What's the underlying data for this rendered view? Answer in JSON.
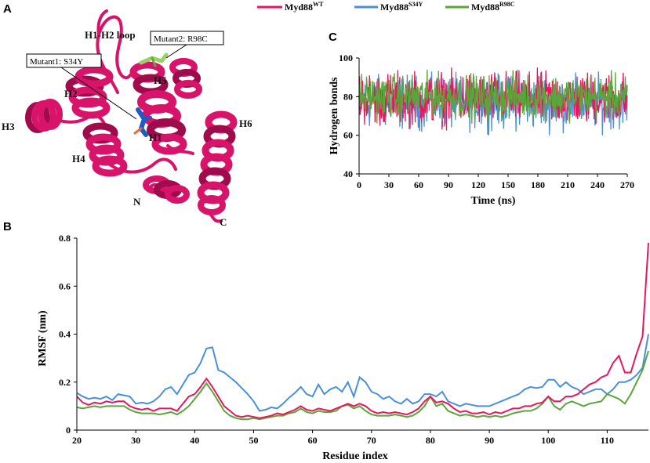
{
  "colors": {
    "wt": "#e8175d",
    "s34y": "#4a90d9",
    "r98c": "#5aa63a",
    "protein": "#d8136a",
    "protein_dark": "#9e0c4c"
  },
  "panels": {
    "a": "A",
    "b": "B",
    "c": "C"
  },
  "legend": [
    {
      "base": "Myd88",
      "sup": "WT",
      "color": "#e8175d"
    },
    {
      "base": "Myd88",
      "sup": "S34Y",
      "color": "#4a90d9"
    },
    {
      "base": "Myd88",
      "sup": "R98C",
      "color": "#5aa63a"
    }
  ],
  "structure": {
    "labels": {
      "h1h2": "H1-H2 loop",
      "h1": "H1",
      "h2": "H2",
      "h3": "H3",
      "h4": "H4",
      "h5": "H5",
      "h6": "H6",
      "n": "N",
      "c": "C"
    },
    "mutant1": "Mutant1: S34Y",
    "mutant2": "Mutant2: R98C"
  },
  "chart_data": [
    {
      "id": "hbonds",
      "type": "line",
      "xlabel": "Time (ns)",
      "ylabel": "Hydrogen bonds",
      "xlim": [
        0,
        270
      ],
      "ylim": [
        40,
        100
      ],
      "xticks": [
        0,
        30,
        60,
        90,
        120,
        150,
        180,
        210,
        240,
        270
      ],
      "yticks": [
        40,
        60,
        80,
        100
      ],
      "series": [
        {
          "name": "Myd88 WT",
          "mean": 79,
          "spread": 6,
          "min": 59,
          "max": 95
        },
        {
          "name": "Myd88 S34Y",
          "mean": 77,
          "spread": 6,
          "min": 60,
          "max": 93
        },
        {
          "name": "Myd88 R98C",
          "mean": 80,
          "spread": 5,
          "min": 66,
          "max": 96
        }
      ]
    },
    {
      "id": "rmsf",
      "type": "line",
      "xlabel": "Residue index",
      "ylabel": "RMSF (nm)",
      "xlim": [
        20,
        117
      ],
      "ylim": [
        0,
        0.8
      ],
      "xticks": [
        20,
        30,
        40,
        50,
        60,
        70,
        80,
        90,
        100,
        110
      ],
      "yticks": [
        0,
        0.2,
        0.4,
        0.6,
        0.8
      ],
      "x": [
        20,
        21,
        22,
        23,
        24,
        25,
        26,
        27,
        28,
        29,
        30,
        31,
        32,
        33,
        34,
        35,
        36,
        37,
        38,
        39,
        40,
        41,
        42,
        43,
        44,
        45,
        46,
        47,
        48,
        49,
        50,
        51,
        52,
        53,
        54,
        55,
        56,
        57,
        58,
        59,
        60,
        61,
        62,
        63,
        64,
        65,
        66,
        67,
        68,
        69,
        70,
        71,
        72,
        73,
        74,
        75,
        76,
        77,
        78,
        79,
        80,
        81,
        82,
        83,
        84,
        85,
        86,
        87,
        88,
        89,
        90,
        91,
        92,
        93,
        94,
        95,
        96,
        97,
        98,
        99,
        100,
        101,
        102,
        103,
        104,
        105,
        106,
        107,
        108,
        109,
        110,
        111,
        112,
        113,
        114,
        115,
        116,
        117
      ],
      "series": [
        {
          "name": "Myd88 WT",
          "values": [
            0.14,
            0.115,
            0.105,
            0.115,
            0.11,
            0.12,
            0.115,
            0.12,
            0.12,
            0.1,
            0.09,
            0.085,
            0.09,
            0.08,
            0.09,
            0.09,
            0.09,
            0.08,
            0.11,
            0.14,
            0.15,
            0.18,
            0.215,
            0.18,
            0.14,
            0.1,
            0.08,
            0.06,
            0.055,
            0.06,
            0.055,
            0.05,
            0.055,
            0.06,
            0.07,
            0.065,
            0.075,
            0.085,
            0.1,
            0.085,
            0.08,
            0.09,
            0.085,
            0.08,
            0.09,
            0.1,
            0.11,
            0.1,
            0.11,
            0.1,
            0.08,
            0.07,
            0.075,
            0.07,
            0.075,
            0.07,
            0.065,
            0.075,
            0.09,
            0.12,
            0.14,
            0.115,
            0.12,
            0.11,
            0.09,
            0.075,
            0.08,
            0.07,
            0.07,
            0.075,
            0.065,
            0.075,
            0.07,
            0.08,
            0.09,
            0.09,
            0.1,
            0.1,
            0.11,
            0.115,
            0.14,
            0.12,
            0.12,
            0.14,
            0.14,
            0.15,
            0.17,
            0.19,
            0.2,
            0.22,
            0.23,
            0.28,
            0.31,
            0.24,
            0.24,
            0.32,
            0.39,
            0.78
          ]
        },
        {
          "name": "Myd88 S34Y",
          "values": [
            0.155,
            0.14,
            0.13,
            0.135,
            0.13,
            0.14,
            0.125,
            0.15,
            0.145,
            0.14,
            0.11,
            0.115,
            0.11,
            0.12,
            0.14,
            0.17,
            0.18,
            0.15,
            0.19,
            0.23,
            0.24,
            0.28,
            0.34,
            0.345,
            0.25,
            0.24,
            0.22,
            0.2,
            0.175,
            0.15,
            0.12,
            0.08,
            0.085,
            0.095,
            0.09,
            0.11,
            0.135,
            0.155,
            0.18,
            0.15,
            0.14,
            0.19,
            0.15,
            0.17,
            0.18,
            0.16,
            0.2,
            0.14,
            0.22,
            0.2,
            0.16,
            0.15,
            0.13,
            0.14,
            0.12,
            0.11,
            0.13,
            0.11,
            0.12,
            0.15,
            0.15,
            0.14,
            0.16,
            0.12,
            0.11,
            0.1,
            0.11,
            0.105,
            0.1,
            0.1,
            0.1,
            0.11,
            0.12,
            0.13,
            0.14,
            0.15,
            0.17,
            0.18,
            0.175,
            0.18,
            0.21,
            0.21,
            0.18,
            0.2,
            0.18,
            0.17,
            0.15,
            0.16,
            0.17,
            0.17,
            0.15,
            0.17,
            0.2,
            0.2,
            0.21,
            0.23,
            0.26,
            0.4
          ]
        },
        {
          "name": "Myd88 R98C",
          "values": [
            0.095,
            0.09,
            0.095,
            0.1,
            0.095,
            0.1,
            0.1,
            0.1,
            0.1,
            0.085,
            0.075,
            0.07,
            0.07,
            0.07,
            0.065,
            0.07,
            0.075,
            0.065,
            0.08,
            0.1,
            0.13,
            0.16,
            0.195,
            0.16,
            0.12,
            0.08,
            0.06,
            0.05,
            0.045,
            0.045,
            0.05,
            0.045,
            0.05,
            0.055,
            0.06,
            0.06,
            0.07,
            0.075,
            0.09,
            0.075,
            0.07,
            0.08,
            0.075,
            0.075,
            0.08,
            0.1,
            0.105,
            0.09,
            0.1,
            0.08,
            0.065,
            0.06,
            0.06,
            0.06,
            0.065,
            0.06,
            0.055,
            0.06,
            0.075,
            0.1,
            0.14,
            0.1,
            0.11,
            0.08,
            0.07,
            0.06,
            0.065,
            0.06,
            0.055,
            0.06,
            0.055,
            0.06,
            0.055,
            0.06,
            0.07,
            0.075,
            0.08,
            0.08,
            0.09,
            0.11,
            0.14,
            0.1,
            0.085,
            0.11,
            0.12,
            0.11,
            0.1,
            0.11,
            0.115,
            0.12,
            0.15,
            0.14,
            0.13,
            0.11,
            0.15,
            0.2,
            0.25,
            0.33
          ]
        }
      ]
    }
  ]
}
